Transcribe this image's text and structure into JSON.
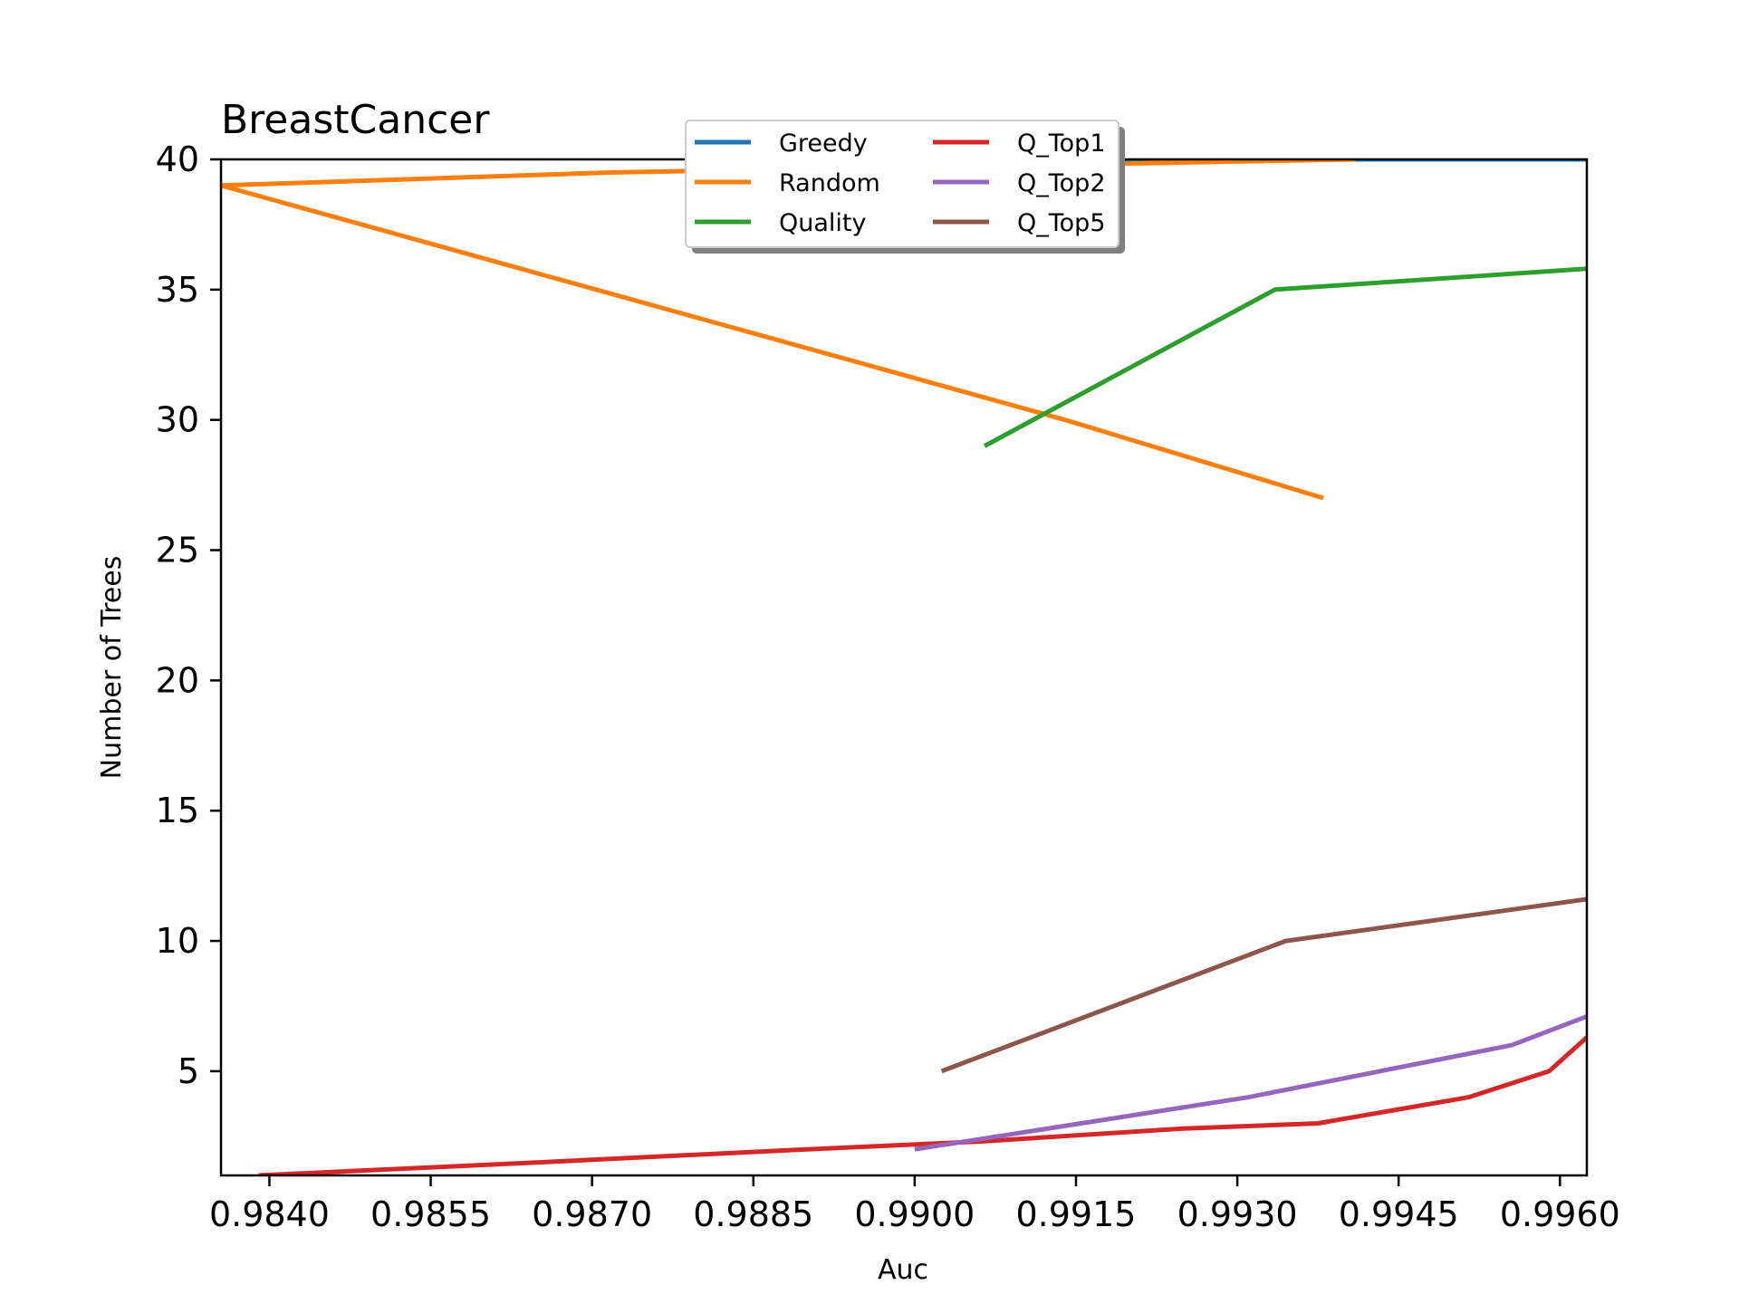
{
  "chart_data": {
    "type": "line",
    "title": "BreastCancer",
    "xlabel": "Auc",
    "ylabel": "Number of Trees",
    "xlim": [
      0.98355,
      0.99625
    ],
    "ylim": [
      1,
      40
    ],
    "xticks": [
      0.984,
      0.9855,
      0.987,
      0.9885,
      0.99,
      0.9915,
      0.993,
      0.9945,
      0.996
    ],
    "xtick_labels": [
      "0.9840",
      "0.9855",
      "0.9870",
      "0.9885",
      "0.9900",
      "0.9915",
      "0.9930",
      "0.9945",
      "0.9960"
    ],
    "yticks": [
      5,
      10,
      15,
      20,
      25,
      30,
      35,
      40
    ],
    "ytick_labels": [
      "5",
      "10",
      "15",
      "20",
      "25",
      "30",
      "35",
      "40"
    ],
    "grid": false,
    "legend": {
      "placement": "upper center",
      "columns": 2,
      "shadow": true
    },
    "series": [
      {
        "name": "Greedy",
        "color": "#1f77b4",
        "x": [
          0.9914,
          0.99625
        ],
        "y": [
          40,
          40
        ]
      },
      {
        "name": "Random",
        "color": "#ff7f0e",
        "x": [
          0.9941,
          0.9914,
          0.9872,
          0.98355,
          0.9914,
          0.9938
        ],
        "y": [
          40,
          39.8,
          39.5,
          39,
          30,
          27
        ]
      },
      {
        "name": "Quality",
        "color": "#2ca02c",
        "x": [
          0.99065,
          0.99335,
          0.99625
        ],
        "y": [
          29,
          35,
          35.8
        ]
      },
      {
        "name": "Q_Top1",
        "color": "#d62728",
        "x": [
          0.9839,
          0.9865,
          0.989,
          0.9906,
          0.9925,
          0.99375,
          0.99515,
          0.9959,
          0.99625
        ],
        "y": [
          1,
          1.5,
          2,
          2.3,
          2.8,
          3,
          4,
          5,
          6.3
        ]
      },
      {
        "name": "Q_Top2",
        "color": "#9467bd",
        "x": [
          0.99,
          0.9931,
          0.99555,
          0.99625
        ],
        "y": [
          2,
          4,
          6,
          7.1
        ]
      },
      {
        "name": "Q_Top5",
        "color": "#8c564b",
        "x": [
          0.99025,
          0.99345,
          0.99625
        ],
        "y": [
          5,
          10,
          11.6
        ]
      }
    ]
  }
}
